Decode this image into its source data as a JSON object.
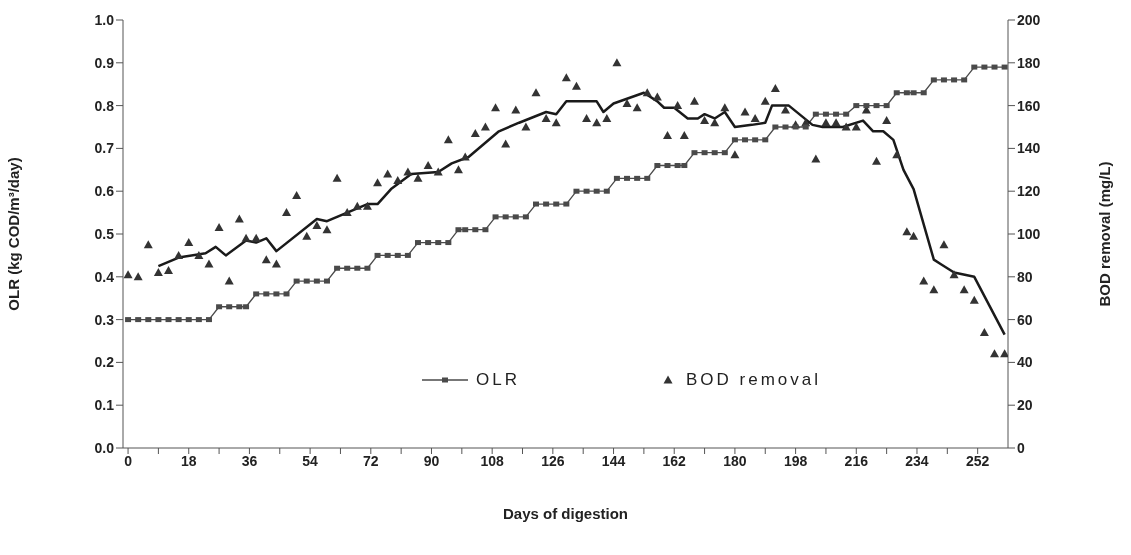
{
  "chart_data": {
    "type": "line",
    "xlabel": "Days of digestion",
    "ylabel": "OLR (kg COD/m³/day)",
    "y2label": "BOD removal (mg/L)",
    "x": [
      0,
      3,
      6,
      9,
      12,
      15,
      18,
      21,
      24,
      27,
      30,
      33,
      35,
      38,
      41,
      44,
      47,
      50,
      53,
      56,
      59,
      62,
      65,
      68,
      71,
      74,
      77,
      80,
      83,
      86,
      89,
      92,
      95,
      98,
      100,
      103,
      106,
      109,
      112,
      115,
      118,
      121,
      124,
      127,
      130,
      133,
      136,
      139,
      142,
      145,
      148,
      151,
      154,
      157,
      160,
      163,
      165,
      168,
      171,
      174,
      177,
      180,
      183,
      186,
      189,
      192,
      195,
      198,
      201,
      204,
      207,
      210,
      213,
      216,
      219,
      222,
      225,
      228,
      231,
      233,
      236,
      239,
      242,
      245,
      248,
      251,
      254,
      257,
      260
    ],
    "series": [
      {
        "name": "OLR",
        "color": "#4a4a4a",
        "marker": "square",
        "line_style": "solid",
        "values": [
          0.3,
          0.3,
          0.3,
          0.3,
          0.3,
          0.3,
          0.3,
          0.3,
          0.3,
          0.33,
          0.33,
          0.33,
          0.33,
          0.36,
          0.36,
          0.36,
          0.36,
          0.39,
          0.39,
          0.39,
          0.39,
          0.42,
          0.42,
          0.42,
          0.42,
          0.45,
          0.45,
          0.45,
          0.45,
          0.48,
          0.48,
          0.48,
          0.48,
          0.51,
          0.51,
          0.51,
          0.51,
          0.54,
          0.54,
          0.54,
          0.54,
          0.57,
          0.57,
          0.57,
          0.57,
          0.6,
          0.6,
          0.6,
          0.6,
          0.63,
          0.63,
          0.63,
          0.63,
          0.66,
          0.66,
          0.66,
          0.66,
          0.69,
          0.69,
          0.69,
          0.69,
          0.72,
          0.72,
          0.72,
          0.72,
          0.75,
          0.75,
          0.75,
          0.75,
          0.78,
          0.78,
          0.78,
          0.78,
          0.8,
          0.8,
          0.8,
          0.8,
          0.83,
          0.83,
          0.83,
          0.83,
          0.86,
          0.86,
          0.86,
          0.86,
          0.89,
          0.89,
          0.89,
          0.89
        ]
      },
      {
        "name": "BOD removal",
        "type": "scatter",
        "axis": "y2",
        "color": "#333333",
        "marker": "triangle",
        "values": [
          81,
          80,
          95,
          82,
          83,
          90,
          96,
          90,
          86,
          103,
          78,
          107,
          98,
          98,
          88,
          86,
          110,
          118,
          99,
          104,
          102,
          126,
          110,
          113,
          113,
          124,
          128,
          125,
          129,
          126,
          132,
          129,
          144,
          130,
          136,
          147,
          150,
          159,
          142,
          158,
          150,
          166,
          154,
          152,
          173,
          169,
          154,
          152,
          154,
          180,
          161,
          159,
          166,
          164,
          146,
          160,
          146,
          162,
          153,
          152,
          159,
          137,
          157,
          154,
          162,
          168,
          158,
          151,
          152,
          135,
          152,
          152,
          150,
          150,
          158,
          134,
          153,
          137,
          101,
          99,
          78,
          74,
          95,
          81,
          74,
          69,
          54,
          44,
          44
        ]
      },
      {
        "type": "line",
        "axis": "y2",
        "color": "#1a1a1a",
        "marker": "none",
        "line_style": "solid",
        "x": [
          9,
          15,
          23,
          26,
          29,
          35,
          38,
          41,
          44,
          56,
          59,
          71,
          74,
          78,
          84,
          92,
          96,
          101,
          110,
          116,
          124,
          127,
          130,
          139,
          141,
          144,
          153,
          157,
          159,
          162,
          166,
          169,
          171,
          174,
          177,
          180,
          185,
          189,
          191,
          196,
          203,
          206,
          212,
          218,
          221,
          224,
          227,
          230,
          233,
          239,
          241,
          245,
          251,
          260
        ],
        "values": [
          85,
          89,
          91,
          94,
          90,
          97,
          96,
          98,
          92,
          107,
          106,
          114,
          114,
          121,
          128,
          129,
          133,
          136,
          148,
          152,
          157,
          156,
          162,
          162,
          157,
          161,
          166,
          162,
          159,
          159,
          154,
          154,
          156,
          154,
          157,
          150,
          151,
          152,
          160,
          160,
          151,
          150,
          150,
          153,
          148,
          148,
          144,
          130,
          121,
          88,
          86,
          82,
          80,
          53
        ]
      }
    ],
    "xlim": [
      -1.5,
      261
    ],
    "xticks": [
      0,
      {
        "value": 9,
        "label": null
      },
      18,
      {
        "value": 27,
        "label": null
      },
      36,
      {
        "value": 45,
        "label": null
      },
      54,
      {
        "value": 63,
        "label": null
      },
      72,
      {
        "value": 81,
        "label": null
      },
      90,
      {
        "value": 99,
        "label": null
      },
      108,
      {
        "value": 117,
        "label": null
      },
      126,
      {
        "value": 135,
        "label": null
      },
      144,
      {
        "value": 153,
        "label": null
      },
      162,
      {
        "value": 171,
        "label": null
      },
      180,
      {
        "value": 189,
        "label": null
      },
      198,
      {
        "value": 207,
        "label": null
      },
      216,
      {
        "value": 225,
        "label": null
      },
      234,
      {
        "value": 243,
        "label": null
      },
      252
    ],
    "ylim": [
      0,
      1
    ],
    "yticks": [
      {
        "value": 0,
        "label": "0.0"
      },
      0.1,
      0.2,
      0.3,
      0.4,
      0.5,
      0.6,
      0.7,
      0.8,
      0.9,
      {
        "value": 1,
        "label": "1.0"
      }
    ],
    "y2lim": [
      0,
      200
    ],
    "y2ticks": [
      0,
      20,
      40,
      60,
      80,
      100,
      120,
      140,
      160,
      180,
      200
    ],
    "legend": "bottom"
  }
}
